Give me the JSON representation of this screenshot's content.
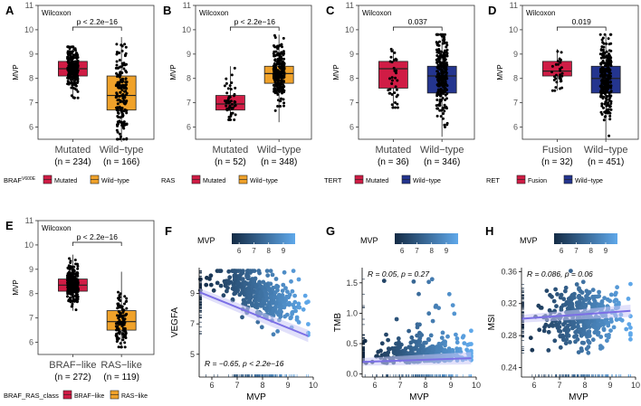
{
  "figure": {
    "colors": {
      "mutated": "#d01c45",
      "wildtype_orange": "#f0a22a",
      "wildtype_blue": "#24358f",
      "scatter_low": "#142b45",
      "scatter_high": "#5fa8ea",
      "fit_line": "#7b6fe6",
      "fit_band": "#c9c6f5"
    }
  },
  "chart_data": [
    {
      "panel": "A",
      "type": "box",
      "test": "Wilcoxon",
      "ylabel": "MVP",
      "ylim": [
        5.5,
        11
      ],
      "yticks": [
        6,
        7,
        8,
        9,
        10,
        11
      ],
      "categories": [
        "Mutated",
        "Wild−type"
      ],
      "counts": [
        "(n = 234)",
        "(n = 166)"
      ],
      "n": [
        234,
        166
      ],
      "box": [
        {
          "q1": 8.1,
          "median": 8.4,
          "q3": 8.7,
          "wmin": 7.2,
          "wmax": 9.3
        },
        {
          "q1": 6.7,
          "median": 7.3,
          "q3": 8.1,
          "wmin": 5.5,
          "wmax": 9.7
        }
      ],
      "pvalue": "p < 2.2e−16",
      "legend_title": "BRAF",
      "legend_title_sup": "V600E",
      "legend_items": [
        "Mutated",
        "Wild−type"
      ],
      "fill_keys": [
        "mutated",
        "wildtype_orange"
      ]
    },
    {
      "panel": "B",
      "type": "box",
      "test": "Wilcoxon",
      "ylabel": "MVP",
      "ylim": [
        5.5,
        11
      ],
      "yticks": [
        6,
        7,
        8,
        9,
        10,
        11
      ],
      "categories": [
        "Mutated",
        "Wild−type"
      ],
      "counts": [
        "(n = 52)",
        "(n = 348)"
      ],
      "n": [
        52,
        348
      ],
      "box": [
        {
          "q1": 6.7,
          "median": 6.95,
          "q3": 7.3,
          "wmin": 6.3,
          "wmax": 8.5
        },
        {
          "q1": 7.8,
          "median": 8.2,
          "q3": 8.5,
          "wmin": 6.2,
          "wmax": 9.8
        }
      ],
      "pvalue": "p < 2.2e−16",
      "legend_title": "RAS",
      "legend_title_sup": "",
      "legend_items": [
        "Mutated",
        "Wild−type"
      ],
      "fill_keys": [
        "mutated",
        "wildtype_orange"
      ]
    },
    {
      "panel": "C",
      "type": "box",
      "test": "Wilcoxon",
      "ylabel": "MVP",
      "ylim": [
        5.5,
        11
      ],
      "yticks": [
        6,
        7,
        8,
        9,
        10,
        11
      ],
      "categories": [
        "Mutated",
        "Wild−type"
      ],
      "counts": [
        "(n = 36)",
        "(n = 346)"
      ],
      "n": [
        36,
        346
      ],
      "box": [
        {
          "q1": 7.6,
          "median": 8.4,
          "q3": 8.7,
          "wmin": 6.8,
          "wmax": 9.2
        },
        {
          "q1": 7.4,
          "median": 8.1,
          "q3": 8.5,
          "wmin": 5.6,
          "wmax": 9.8
        }
      ],
      "pvalue": "0.037",
      "legend_title": "TERT",
      "legend_title_sup": "",
      "legend_items": [
        "Mutated",
        "Wild−type"
      ],
      "fill_keys": [
        "mutated",
        "wildtype_blue"
      ]
    },
    {
      "panel": "D",
      "type": "box",
      "test": "Wilcoxon",
      "ylabel": "MVP",
      "ylim": [
        5.5,
        11
      ],
      "yticks": [
        6,
        7,
        8,
        9,
        10,
        11
      ],
      "categories": [
        "Fusion",
        "Wild−type"
      ],
      "counts": [
        "(n = 32)",
        "(n = 451)"
      ],
      "n": [
        32,
        451
      ],
      "box": [
        {
          "q1": 8.1,
          "median": 8.3,
          "q3": 8.7,
          "wmin": 7.5,
          "wmax": 9.2
        },
        {
          "q1": 7.4,
          "median": 8.0,
          "q3": 8.5,
          "wmin": 5.5,
          "wmax": 9.8
        }
      ],
      "pvalue": "0.019",
      "legend_title": "RET",
      "legend_title_sup": "",
      "legend_items": [
        "Fusion",
        "Wild−type"
      ],
      "fill_keys": [
        "mutated",
        "wildtype_blue"
      ]
    },
    {
      "panel": "E",
      "type": "box",
      "test": "Wilcoxon",
      "ylabel": "MVP",
      "ylim": [
        5.5,
        11
      ],
      "yticks": [
        6,
        7,
        8,
        9,
        10,
        11
      ],
      "categories": [
        "BRAF−like",
        "RAS−like"
      ],
      "counts": [
        "(n = 272)",
        "(n = 119)"
      ],
      "n": [
        272,
        119
      ],
      "box": [
        {
          "q1": 8.1,
          "median": 8.35,
          "q3": 8.6,
          "wmin": 7.3,
          "wmax": 9.6
        },
        {
          "q1": 6.5,
          "median": 6.85,
          "q3": 7.3,
          "wmin": 5.8,
          "wmax": 8.9
        }
      ],
      "pvalue": "p < 2.2e−16",
      "legend_title": "BRAF_RAS_class",
      "legend_title_sup": "",
      "legend_items": [
        "BRAF−like",
        "RAS−like"
      ],
      "fill_keys": [
        "mutated",
        "wildtype_orange"
      ]
    },
    {
      "panel": "F",
      "type": "scatter",
      "xlabel": "MVP",
      "ylabel": "VEGFA",
      "xlim": [
        5.5,
        10
      ],
      "xticks": [
        6,
        7,
        8,
        9,
        10
      ],
      "ylim": [
        3.5,
        10.7
      ],
      "yticks": [
        5,
        7,
        9
      ],
      "fit": {
        "x0": 5.5,
        "y0": 9.1,
        "x1": 9.8,
        "y1": 6.2
      },
      "trend": {
        "slope": -0.65,
        "base": 9.0,
        "spread": 0.8,
        "x_mean": 7.9,
        "x_sd": 0.85,
        "n": 380
      },
      "stat": "R = −0.65, p < 2.2e−16",
      "legend_title": "MVP",
      "legend_ticks": [
        6,
        7,
        8,
        9
      ],
      "legend_range": [
        5.5,
        9.8
      ]
    },
    {
      "panel": "G",
      "type": "scatter",
      "xlabel": "MVP",
      "ylabel": "TMB",
      "xlim": [
        5.5,
        10
      ],
      "xticks": [
        6,
        7,
        8,
        9,
        10
      ],
      "ylim": [
        -0.05,
        1.75
      ],
      "yticks": [
        0.0,
        0.5,
        1.0,
        1.5
      ],
      "fit": {
        "x0": 5.5,
        "y0": 0.2,
        "x1": 9.8,
        "y1": 0.26
      },
      "trend": {
        "slope": 0.015,
        "base": 0.2,
        "spread": 0.18,
        "x_mean": 7.9,
        "x_sd": 0.85,
        "n": 380
      },
      "stat": "R = 0.05, p = 0.27",
      "legend_title": "MVP",
      "legend_ticks": [
        6,
        7,
        8,
        9
      ],
      "legend_range": [
        5.5,
        9.8
      ]
    },
    {
      "panel": "H",
      "type": "scatter",
      "xlabel": "MVP",
      "ylabel": "MSI",
      "xlim": [
        5.5,
        10
      ],
      "xticks": [
        6,
        7,
        8,
        9,
        10
      ],
      "ylim": [
        0.228,
        0.365
      ],
      "yticks": [
        0.24,
        0.28,
        0.32,
        0.36
      ],
      "fit": {
        "x0": 5.5,
        "y0": 0.301,
        "x1": 9.8,
        "y1": 0.311
      },
      "trend": {
        "slope": 0.002,
        "base": 0.305,
        "spread": 0.018,
        "x_mean": 7.9,
        "x_sd": 0.85,
        "n": 380
      },
      "stat": "R = 0.086, p = 0.06",
      "legend_title": "MVP",
      "legend_ticks": [
        6,
        7,
        8,
        9
      ],
      "legend_range": [
        5.5,
        9.8
      ]
    }
  ]
}
